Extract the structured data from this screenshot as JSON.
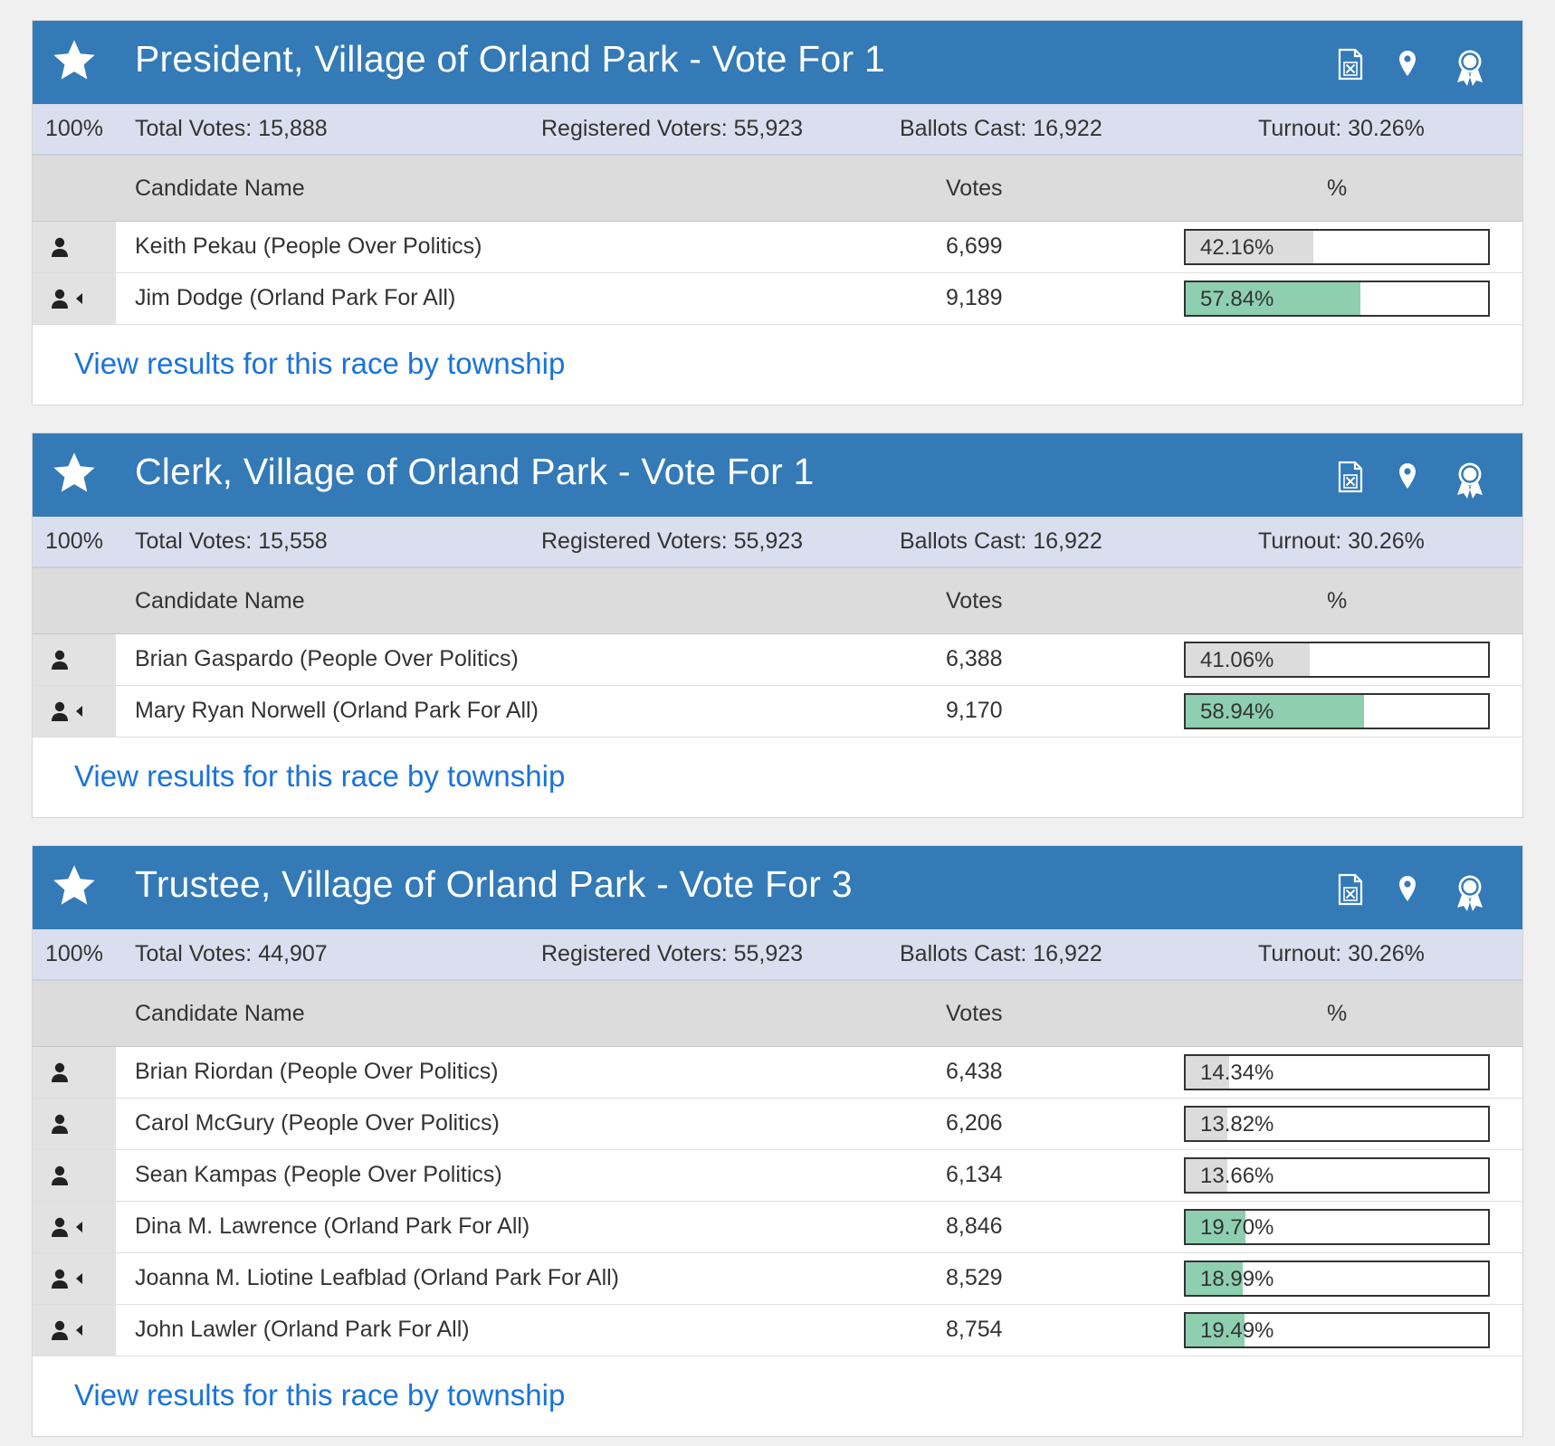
{
  "colors": {
    "header_bg": "#337ab7",
    "summary_bg": "#d9dfee",
    "winner_fill": "#8ecfb0",
    "loser_fill": "#dcdcdc",
    "link": "#1a73d9"
  },
  "columns": {
    "name": "Candidate Name",
    "votes": "Votes",
    "pct": "%"
  },
  "link_text": "View results for this race by township",
  "races": [
    {
      "title": "President, Village of Orland Park - Vote For 1",
      "precincts_pct": "100%",
      "total_votes": "Total Votes: 15,888",
      "registered_voters": "Registered Voters: 55,923",
      "ballots_cast": "Ballots Cast: 16,922",
      "turnout": "Turnout: 30.26%",
      "candidates": [
        {
          "name": "Keith Pekau (People Over Politics)",
          "votes": "6,699",
          "pct": "42.16%",
          "pct_value": 42.16,
          "winner": false
        },
        {
          "name": "Jim Dodge (Orland Park For All)",
          "votes": "9,189",
          "pct": "57.84%",
          "pct_value": 57.84,
          "winner": true
        }
      ]
    },
    {
      "title": "Clerk, Village of Orland Park - Vote For 1",
      "precincts_pct": "100%",
      "total_votes": "Total Votes: 15,558",
      "registered_voters": "Registered Voters: 55,923",
      "ballots_cast": "Ballots Cast: 16,922",
      "turnout": "Turnout: 30.26%",
      "candidates": [
        {
          "name": "Brian Gaspardo (People Over Politics)",
          "votes": "6,388",
          "pct": "41.06%",
          "pct_value": 41.06,
          "winner": false
        },
        {
          "name": "Mary Ryan Norwell (Orland Park For All)",
          "votes": "9,170",
          "pct": "58.94%",
          "pct_value": 58.94,
          "winner": true
        }
      ]
    },
    {
      "title": "Trustee, Village of Orland Park - Vote For 3",
      "precincts_pct": "100%",
      "total_votes": "Total Votes: 44,907",
      "registered_voters": "Registered Voters: 55,923",
      "ballots_cast": "Ballots Cast: 16,922",
      "turnout": "Turnout: 30.26%",
      "candidates": [
        {
          "name": "Brian Riordan (People Over Politics)",
          "votes": "6,438",
          "pct": "14.34%",
          "pct_value": 14.34,
          "winner": false
        },
        {
          "name": "Carol McGury (People Over Politics)",
          "votes": "6,206",
          "pct": "13.82%",
          "pct_value": 13.82,
          "winner": false
        },
        {
          "name": "Sean Kampas (People Over Politics)",
          "votes": "6,134",
          "pct": "13.66%",
          "pct_value": 13.66,
          "winner": false
        },
        {
          "name": "Dina M. Lawrence (Orland Park For All)",
          "votes": "8,846",
          "pct": "19.70%",
          "pct_value": 19.7,
          "winner": true
        },
        {
          "name": "Joanna M. Liotine Leafblad (Orland Park For All)",
          "votes": "8,529",
          "pct": "18.99%",
          "pct_value": 18.99,
          "winner": true
        },
        {
          "name": "John Lawler (Orland Park For All)",
          "votes": "8,754",
          "pct": "19.49%",
          "pct_value": 19.49,
          "winner": true
        }
      ]
    }
  ]
}
